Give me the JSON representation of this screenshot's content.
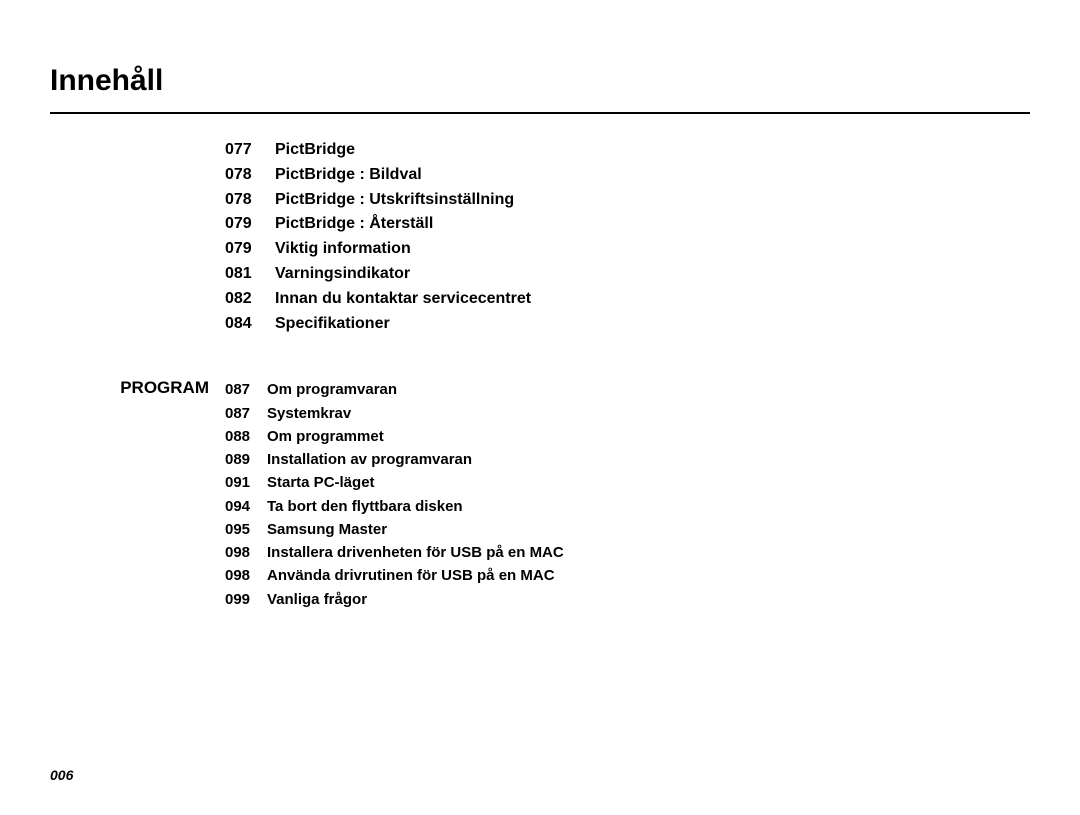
{
  "page": {
    "title": "Innehåll",
    "page_number": "006"
  },
  "sections": [
    {
      "label": "",
      "style": "group1",
      "entries": [
        {
          "page": "077",
          "title": "PictBridge"
        },
        {
          "page": "078",
          "title": "PictBridge : Bildval"
        },
        {
          "page": "078",
          "title": "PictBridge : Utskriftsinställning"
        },
        {
          "page": "079",
          "title": "PictBridge : Återställ"
        },
        {
          "page": "079",
          "title": "Viktig information"
        },
        {
          "page": "081",
          "title": "Varningsindikator"
        },
        {
          "page": "082",
          "title": "Innan du kontaktar servicecentret"
        },
        {
          "page": "084",
          "title": "Specifikationer"
        }
      ]
    },
    {
      "label": "PROGRAM",
      "style": "group2",
      "entries": [
        {
          "page": "087",
          "title": "Om programvaran"
        },
        {
          "page": "087",
          "title": "Systemkrav"
        },
        {
          "page": "088",
          "title": "Om programmet"
        },
        {
          "page": "089",
          "title": "Installation av programvaran"
        },
        {
          "page": "091",
          "title": "Starta PC-läget"
        },
        {
          "page": "094",
          "title": "Ta bort den flyttbara disken"
        },
        {
          "page": "095",
          "title": "Samsung Master"
        },
        {
          "page": "098",
          "title": "Installera drivenheten för USB på en MAC"
        },
        {
          "page": "098",
          "title": "Använda drivrutinen för USB på en MAC"
        },
        {
          "page": "099",
          "title": "Vanliga frågor"
        }
      ]
    }
  ]
}
